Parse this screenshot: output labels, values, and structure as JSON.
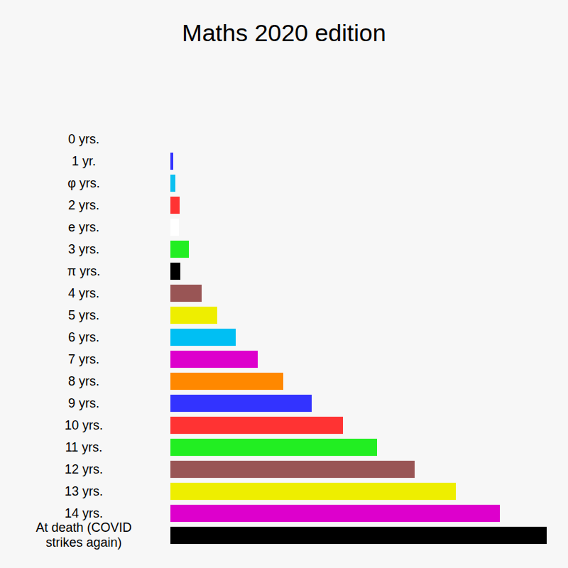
{
  "chart_data": {
    "type": "bar",
    "orientation": "horizontal",
    "title": "Maths 2020 edition",
    "categories": [
      "0 yrs.",
      "1 yr.",
      "φ yrs.",
      "2 yrs.",
      "e yrs.",
      "3 yrs.",
      "π yrs.",
      "4 yrs.",
      "5 yrs.",
      "6 yrs.",
      "7 yrs.",
      "8 yrs.",
      "9 yrs.",
      "10 yrs.",
      "11 yrs.",
      "12 yrs.",
      "13 yrs.",
      "14 yrs.",
      "At death (COVID strikes again)"
    ],
    "values": [
      0,
      4,
      7,
      13,
      12,
      26,
      14,
      44,
      66,
      92,
      123,
      159,
      199,
      243,
      291,
      344,
      402,
      464,
      530
    ],
    "colors": [
      "#3333ff",
      "#3333ff",
      "#0bc0f0",
      "#ff3333",
      "#ffffff",
      "#22ee22",
      "#000000",
      "#995555",
      "#eeee00",
      "#00bff3",
      "#dd00cc",
      "#ff8800",
      "#3333ff",
      "#ff3333",
      "#22ee22",
      "#995555",
      "#eeee00",
      "#dd00cc",
      "#000000"
    ],
    "xlim": [
      0,
      530
    ],
    "grid": false,
    "tick_labels": "y"
  }
}
